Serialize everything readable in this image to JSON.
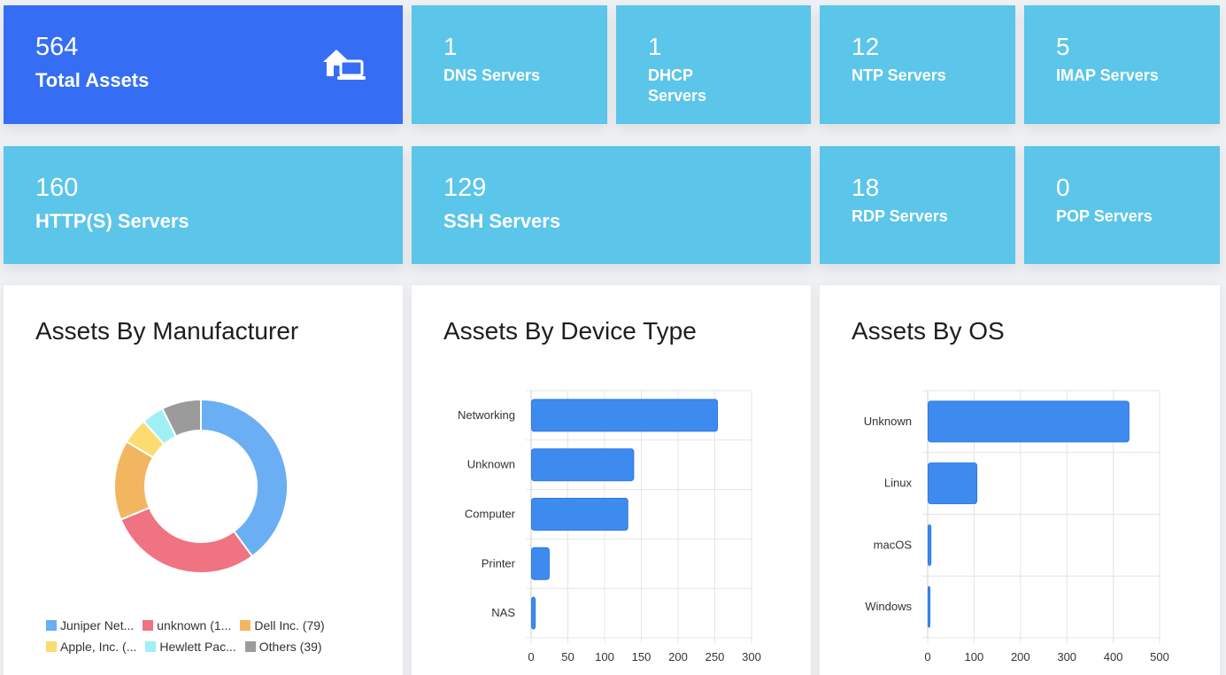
{
  "tiles": {
    "total": {
      "value": "564",
      "label": "Total Assets"
    },
    "dns": {
      "value": "1",
      "label": "DNS Servers"
    },
    "dhcp": {
      "value": "1",
      "label_line1": "DHCP",
      "label_line2": "Servers"
    },
    "ntp": {
      "value": "12",
      "label": "NTP Servers"
    },
    "imap": {
      "value": "5",
      "label": "IMAP Servers"
    },
    "http": {
      "value": "160",
      "label": "HTTP(S) Servers"
    },
    "ssh": {
      "value": "129",
      "label": "SSH Servers"
    },
    "rdp": {
      "value": "18",
      "label": "RDP Servers"
    },
    "pop": {
      "value": "0",
      "label": "POP Servers"
    }
  },
  "cards": {
    "manufacturer_title": "Assets By Manufacturer",
    "device_title": "Assets By Device Type",
    "os_title": "Assets By OS"
  },
  "colors": {
    "primary_tile": "#356ef5",
    "tile": "#5bc5ea",
    "bar": "#3d8bef"
  },
  "chart_data": [
    {
      "type": "pie",
      "variant": "doughnut",
      "title": "Assets By Manufacturer",
      "legend": "bottom",
      "slices": [
        {
          "label": "Juniper Net...",
          "value": 212,
          "color": "#6aaef4"
        },
        {
          "label": "unknown (1...",
          "value": 153,
          "color": "#ef7380"
        },
        {
          "label": "Dell Inc. (79)",
          "value": 79,
          "color": "#f3b660"
        },
        {
          "label": "Apple, Inc. (...",
          "value": 26,
          "color": "#fbdc70"
        },
        {
          "label": "Hewlett Pac...",
          "value": 22,
          "color": "#9ff0f5"
        },
        {
          "label": "Others (39)",
          "value": 39,
          "color": "#9b9b9b"
        }
      ]
    },
    {
      "type": "bar",
      "orientation": "horizontal",
      "title": "Assets By Device Type",
      "categories": [
        "Networking",
        "Unknown",
        "Computer",
        "Printer",
        "NAS"
      ],
      "values": [
        253,
        139,
        131,
        24,
        5
      ],
      "xlim": [
        0,
        300
      ],
      "xticks": [
        "0",
        "50",
        "100",
        "150",
        "200",
        "250",
        "300"
      ],
      "grid": true
    },
    {
      "type": "bar",
      "orientation": "horizontal",
      "title": "Assets By OS",
      "categories": [
        "Unknown",
        "Linux",
        "macOS",
        "Windows"
      ],
      "values": [
        433,
        105,
        6,
        3
      ],
      "xlim": [
        0,
        500
      ],
      "xticks": [
        "0",
        "100",
        "200",
        "300",
        "400",
        "500"
      ],
      "grid": true
    }
  ]
}
